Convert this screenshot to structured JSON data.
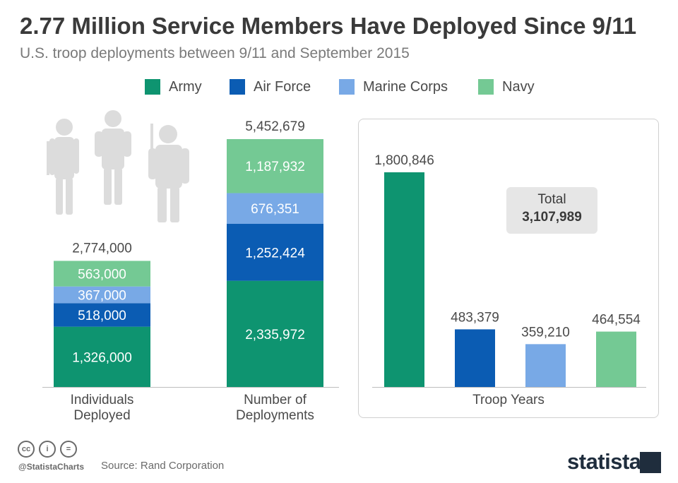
{
  "title": "2.77 Million Service Members Have Deployed Since 9/11",
  "subtitle": "U.S. troop deployments between 9/11 and September 2015",
  "legend": [
    {
      "label": "Army",
      "color": "#0e9470"
    },
    {
      "label": "Air Force",
      "color": "#0b5cb3"
    },
    {
      "label": "Marine Corps",
      "color": "#78a9e6"
    },
    {
      "label": "Navy",
      "color": "#74c994"
    }
  ],
  "chart_data": [
    {
      "type": "bar",
      "stacked": true,
      "categories": [
        "Individuals Deployed",
        "Number of Deployments"
      ],
      "series": [
        {
          "name": "Army",
          "values": [
            1326000,
            2335972
          ],
          "labels": [
            "1,326,000",
            "2,335,972"
          ]
        },
        {
          "name": "Air Force",
          "values": [
            518000,
            1252424
          ],
          "labels": [
            "518,000",
            "1,252,424"
          ]
        },
        {
          "name": "Marine Corps",
          "values": [
            367000,
            676351
          ],
          "labels": [
            "367,000",
            "676,351"
          ]
        },
        {
          "name": "Navy",
          "values": [
            563000,
            1187932
          ],
          "labels": [
            "563,000",
            "1,187,932"
          ]
        }
      ],
      "totals": [
        "2,774,000",
        "5,452,679"
      ]
    },
    {
      "type": "bar",
      "xlabel": "Troop Years",
      "categories": [
        "Army",
        "Air Force",
        "Marine Corps",
        "Navy"
      ],
      "values": [
        1800846,
        483379,
        359210,
        464554
      ],
      "labels": [
        "1,800,846",
        "483,379",
        "359,210",
        "464,554"
      ],
      "total_label": "Total",
      "total_value": "3,107,989"
    }
  ],
  "footer": {
    "source": "Source: Rand Corporation",
    "handle": "@StatistaCharts",
    "brand": "statista",
    "cc_icons": [
      "cc",
      "i",
      "="
    ]
  }
}
